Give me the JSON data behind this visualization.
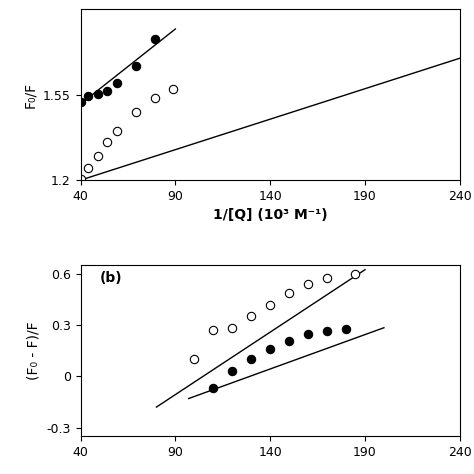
{
  "plot_a": {
    "label": "",
    "xlabel": "1/[Q] (10³ M⁻¹)",
    "ylabel": "F₀/F",
    "xlim": [
      40,
      240
    ],
    "ylim": [
      1.2,
      1.9
    ],
    "xticks": [
      40,
      90,
      140,
      190,
      240
    ],
    "yticks": [
      1.2,
      1.55
    ],
    "ytick_labels": [
      "1.2",
      "1.55"
    ],
    "filled_x": [
      40,
      44,
      49,
      54,
      59,
      69,
      79
    ],
    "filled_y": [
      1.52,
      1.545,
      1.555,
      1.565,
      1.6,
      1.67,
      1.78
    ],
    "open_x": [
      40,
      44,
      49,
      54,
      59,
      69,
      79,
      89
    ],
    "open_y": [
      1.205,
      1.25,
      1.3,
      1.355,
      1.4,
      1.48,
      1.535,
      1.575
    ],
    "filled_line_x": [
      38,
      90
    ],
    "filled_line_y": [
      1.5,
      1.82
    ],
    "open_line_x": [
      38,
      240
    ],
    "open_line_y": [
      1.195,
      1.7
    ]
  },
  "plot_b": {
    "label": "(b)",
    "xlabel": "",
    "ylabel": "(F₀ - F)/F",
    "xlim": [
      40,
      240
    ],
    "ylim": [
      -0.35,
      0.65
    ],
    "xticks": [
      40,
      90,
      140,
      190,
      240
    ],
    "yticks": [
      0.6,
      0.3,
      0,
      -0.3
    ],
    "ytick_labels": [
      "0.6",
      "0.3",
      "0",
      "-0.3"
    ],
    "filled_x": [
      110,
      120,
      130,
      140,
      150,
      160,
      170,
      180
    ],
    "filled_y": [
      -0.07,
      0.03,
      0.1,
      0.16,
      0.21,
      0.25,
      0.265,
      0.28
    ],
    "open_x": [
      100,
      110,
      120,
      130,
      140,
      150,
      160,
      170,
      185
    ],
    "open_y": [
      0.1,
      0.27,
      0.285,
      0.355,
      0.42,
      0.49,
      0.54,
      0.575,
      0.6
    ],
    "filled_line_x": [
      97,
      200
    ],
    "filled_line_y": [
      -0.13,
      0.285
    ],
    "open_line_x": [
      80,
      190
    ],
    "open_line_y": [
      -0.18,
      0.625
    ]
  },
  "marker_size": 6,
  "line_color": "black",
  "filled_color": "black",
  "open_color": "white",
  "edge_color": "black"
}
